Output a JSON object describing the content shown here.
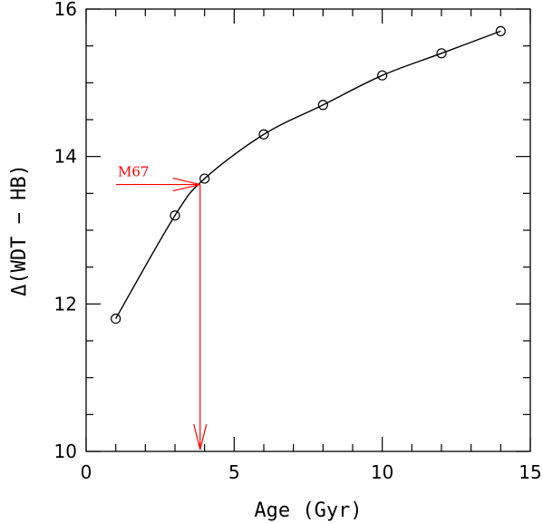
{
  "chart_data": {
    "type": "line",
    "xlabel": "Age (Gyr)",
    "ylabel": "Δ(WDT − HB)",
    "xlim": [
      0,
      15
    ],
    "ylim": [
      10,
      16
    ],
    "x_ticks_major": [
      0,
      5,
      10,
      15
    ],
    "y_ticks_major": [
      10,
      12,
      14,
      16
    ],
    "x_tick_labels": [
      "0",
      "5",
      "10",
      "15"
    ],
    "y_tick_labels": [
      "10",
      "12",
      "14",
      "16"
    ],
    "grid": false,
    "series": [
      {
        "x": [
          1,
          3,
          4,
          6,
          8,
          10,
          12,
          14
        ],
        "y": [
          11.8,
          13.2,
          13.7,
          14.3,
          14.7,
          15.1,
          15.4,
          15.7
        ],
        "marker": "open-circle",
        "line": "smooth",
        "color": "#000000"
      }
    ],
    "annotation": {
      "label": "M67",
      "color": "#ff0000",
      "y": 13.62,
      "x": 3.85
    }
  }
}
